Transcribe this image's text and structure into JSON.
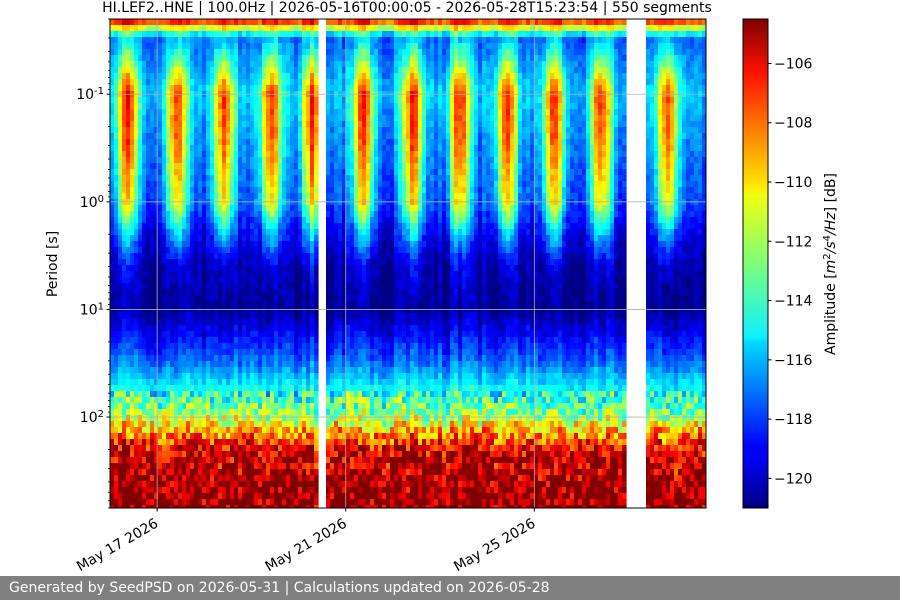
{
  "chart_data": {
    "type": "heatmap",
    "title": "HI.LEF2..HNE | 100.0Hz | 2026-05-16T00:00:05 - 2026-05-28T15:23:54 | 550 segments",
    "ylabel": "Period [s]",
    "y_scale": "log",
    "y_inverted": true,
    "ylim": [
      0.02,
      700
    ],
    "ytick_values": [
      0.1,
      1,
      10,
      100
    ],
    "ytick_labels": [
      "10^-1",
      "10^0",
      "10^1",
      "10^2"
    ],
    "xlim": [
      "2026-05-16T00:00:05",
      "2026-05-28T15:23:54"
    ],
    "xtick_values": [
      "2026-05-17",
      "2026-05-21",
      "2026-05-25"
    ],
    "xtick_labels": [
      "May 17 2026",
      "May 21 2026",
      "May 25 2026"
    ],
    "grid": true,
    "colormap": "jet",
    "colorbar": {
      "label": "Amplitude [m2/s4/Hz] [dB]",
      "range": [
        -121,
        -104.5
      ],
      "ticks": [
        -106,
        -108,
        -110,
        -112,
        -114,
        -116,
        -118,
        -120
      ]
    },
    "data_gaps": [
      [
        "2026-05-20T09:00:00",
        "2026-05-20T14:40:00"
      ],
      [
        "2026-05-26T23:00:00",
        "2026-05-27T09:00:00"
      ]
    ],
    "daily_high_noise_times": [
      "2026-05-16T09:00:00",
      "2026-05-17T10:00:00",
      "2026-05-18T10:00:00",
      "2026-05-19T10:00:00",
      "2026-05-20T07:00:00",
      "2026-05-21T09:00:00",
      "2026-05-22T10:00:00",
      "2026-05-23T10:00:00",
      "2026-05-24T10:00:00",
      "2026-05-25T10:00:00",
      "2026-05-26T10:00:00",
      "2026-05-27T20:00:00"
    ],
    "amplitude_profile_db": [
      {
        "period": 0.02,
        "day": -104.8,
        "night": -106.5
      },
      {
        "period": 0.03,
        "day": -115.5,
        "night": -117.5
      },
      {
        "period": 0.1,
        "day": -107,
        "night": -116
      },
      {
        "period": 0.25,
        "day": -107.5,
        "night": -117
      },
      {
        "period": 1.0,
        "day": -110,
        "night": -118
      },
      {
        "period": 2.0,
        "day": -115,
        "night": -119.5
      },
      {
        "period": 4.0,
        "day": -119,
        "night": -120.5
      },
      {
        "period": 10.0,
        "day": -120.5,
        "night": -120.8
      },
      {
        "period": 30.0,
        "day": -117,
        "night": -117.5
      },
      {
        "period": 100.0,
        "day": -112,
        "night": -112
      },
      {
        "period": 200.0,
        "day": -106,
        "night": -106
      },
      {
        "period": 500.0,
        "day": -104.5,
        "night": -104.5
      }
    ]
  },
  "footer": {
    "text": "Generated by SeedPSD on 2026-05-31 | Calculations updated on 2026-05-28"
  }
}
